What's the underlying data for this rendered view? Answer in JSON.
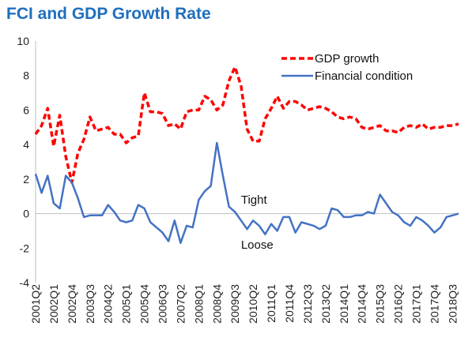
{
  "chart_data": {
    "type": "line",
    "title": "FCI and GDP Growth Rate",
    "xlabel": "",
    "ylabel": "",
    "ylim": [
      -4,
      10
    ],
    "yticks": [
      -4,
      -2,
      0,
      2,
      4,
      6,
      8,
      10
    ],
    "x": [
      "2001Q2",
      "2001Q3",
      "2001Q4",
      "2002Q1",
      "2002Q2",
      "2002Q3",
      "2002Q4",
      "2003Q1",
      "2003Q2",
      "2003Q3",
      "2003Q4",
      "2004Q1",
      "2004Q2",
      "2004Q3",
      "2004Q4",
      "2005Q1",
      "2005Q2",
      "2005Q3",
      "2005Q4",
      "2006Q1",
      "2006Q2",
      "2006Q3",
      "2006Q4",
      "2007Q1",
      "2007Q2",
      "2007Q3",
      "2007Q4",
      "2008Q1",
      "2008Q2",
      "2008Q3",
      "2008Q4",
      "2009Q1",
      "2009Q2",
      "2009Q3",
      "2009Q4",
      "2010Q1",
      "2010Q2",
      "2010Q3",
      "2010Q4",
      "2011Q1",
      "2011Q2",
      "2011Q3",
      "2011Q4",
      "2012Q1",
      "2012Q2",
      "2012Q3",
      "2012Q4",
      "2013Q1",
      "2013Q2",
      "2013Q3",
      "2013Q4",
      "2014Q1",
      "2014Q2",
      "2014Q3",
      "2014Q4",
      "2015Q1",
      "2015Q2",
      "2015Q3",
      "2015Q4",
      "2016Q1",
      "2016Q2",
      "2016Q3",
      "2016Q4",
      "2017Q1",
      "2017Q2",
      "2017Q3",
      "2017Q4",
      "2018Q1",
      "2018Q2",
      "2018Q3",
      "2018Q4"
    ],
    "xtick_labels": [
      "2001Q2",
      "2002Q1",
      "2002Q4",
      "2003Q3",
      "2004Q2",
      "2005Q1",
      "2005Q4",
      "2006Q3",
      "2007Q2",
      "2008Q1",
      "2008Q4",
      "2009Q3",
      "2010Q2",
      "2011Q1",
      "2011Q4",
      "2012Q3",
      "2013Q2",
      "2014Q1",
      "2014Q4",
      "2015Q3",
      "2016Q2",
      "2017Q1",
      "2017Q4",
      "2018Q3"
    ],
    "series": [
      {
        "name": "GDP growth",
        "color": "#ff0000",
        "style": "dashed",
        "values": [
          4.6,
          5.1,
          6.1,
          3.9,
          5.7,
          3.3,
          1.8,
          3.5,
          4.3,
          5.6,
          4.8,
          4.9,
          5.0,
          4.6,
          4.6,
          4.1,
          4.4,
          4.5,
          7.0,
          5.9,
          5.9,
          5.8,
          5.1,
          5.2,
          4.9,
          5.9,
          6.0,
          6.0,
          6.8,
          6.6,
          6.0,
          6.3,
          7.7,
          8.5,
          7.4,
          4.9,
          4.2,
          4.2,
          5.5,
          6.1,
          6.8,
          6.1,
          6.5,
          6.5,
          6.3,
          6.0,
          6.1,
          6.2,
          6.1,
          5.9,
          5.6,
          5.5,
          5.6,
          5.5,
          5.0,
          4.9,
          5.0,
          5.1,
          4.8,
          4.8,
          4.7,
          5.0,
          5.1,
          5.0,
          5.2,
          4.9,
          5.0,
          5.0,
          5.1,
          5.1,
          5.2
        ]
      },
      {
        "name": "Financial condition",
        "color": "#4472c4",
        "style": "solid",
        "values": [
          2.3,
          1.2,
          2.2,
          0.6,
          0.3,
          2.2,
          1.8,
          0.9,
          -0.2,
          -0.1,
          -0.1,
          -0.1,
          0.5,
          0.1,
          -0.4,
          -0.5,
          -0.4,
          0.5,
          0.3,
          -0.5,
          -0.8,
          -1.1,
          -1.6,
          -0.4,
          -1.7,
          -0.7,
          -0.8,
          0.8,
          1.3,
          1.6,
          4.1,
          2.2,
          0.4,
          0.1,
          -0.4,
          -0.9,
          -0.4,
          -0.7,
          -1.2,
          -0.6,
          -1.0,
          -0.2,
          -0.2,
          -1.1,
          -0.5,
          -0.6,
          -0.7,
          -0.9,
          -0.7,
          0.3,
          0.2,
          -0.2,
          -0.2,
          -0.1,
          -0.1,
          0.1,
          0.0,
          1.1,
          0.6,
          0.1,
          -0.1,
          -0.5,
          -0.7,
          -0.2,
          -0.4,
          -0.7,
          -1.1,
          -0.8,
          -0.2,
          -0.1,
          0.0
        ]
      }
    ],
    "annotations": [
      {
        "text": "Tight",
        "x": "2009Q4",
        "y": 0.8
      },
      {
        "text": "Loose",
        "x": "2009Q4",
        "y": -1.8
      }
    ],
    "legend": "top-right",
    "grid": false
  }
}
